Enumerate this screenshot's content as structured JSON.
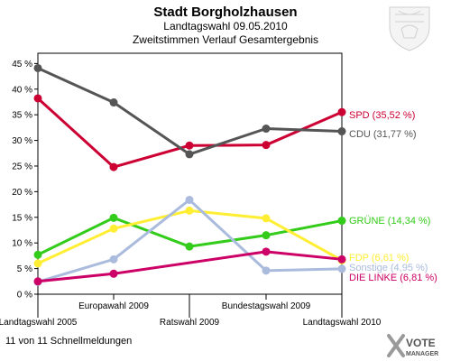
{
  "chart_data": {
    "type": "line",
    "title": "Stadt Borgholzhausen",
    "subtitle1": "Landtagswahl 09.05.2010",
    "subtitle2": "Zweitstimmen Verlauf Gesamtergebnis",
    "categories": [
      "Landtagswahl 2005",
      "Europawahl 2009",
      "Ratswahl 2009",
      "Bundestagswahl 2009",
      "Landtagswahl 2010"
    ],
    "ylim": [
      0,
      47
    ],
    "yticks": [
      0,
      5,
      10,
      15,
      20,
      25,
      30,
      35,
      40,
      45
    ],
    "ytick_labels": [
      "0 %",
      "5 %",
      "10 %",
      "15 %",
      "20 %",
      "25 %",
      "30 %",
      "35 %",
      "40 %",
      "45 %"
    ],
    "grid": false,
    "series": [
      {
        "name": "SPD",
        "legend": "SPD (35,52 %)",
        "color": "#cc0033",
        "values": [
          38.2,
          24.8,
          29.0,
          29.1,
          35.52
        ]
      },
      {
        "name": "CDU",
        "legend": "CDU (31,77 %)",
        "color": "#555555",
        "values": [
          44.1,
          37.4,
          27.3,
          32.3,
          31.77
        ]
      },
      {
        "name": "GRÜNE",
        "legend": "GRÜNE (14,34 %)",
        "color": "#33cc1a",
        "values": [
          7.7,
          14.9,
          9.3,
          11.5,
          14.34
        ]
      },
      {
        "name": "FDP",
        "legend": "FDP (6,61 %)",
        "color": "#ffee33",
        "values": [
          6.0,
          12.8,
          16.3,
          14.8,
          6.61
        ]
      },
      {
        "name": "Sonstige",
        "legend": "Sonstige (4,95 %)",
        "color": "#aabbdd",
        "values": [
          2.4,
          6.8,
          18.4,
          4.6,
          4.95
        ]
      },
      {
        "name": "DIE LINKE",
        "legend": "DIE LINKE (6,81 %)",
        "color": "#cc0066",
        "values": [
          2.5,
          4.0,
          null,
          8.3,
          6.81
        ]
      }
    ]
  },
  "footer": {
    "note": "11 von 11 Schnellmeldungen",
    "brand_line1": "VOTE",
    "brand_line2": "MANAGER"
  }
}
